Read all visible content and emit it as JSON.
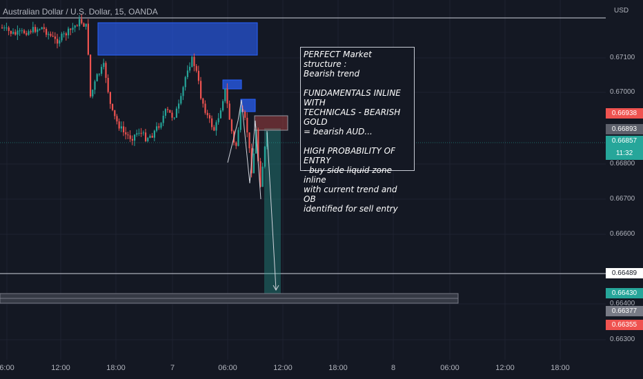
{
  "symbol": {
    "title": "Australian Dollar / U.S. Dollar, 15, OANDA"
  },
  "currency": "USD",
  "price_axis": {
    "labels": [
      "0.67100",
      "0.67000",
      "0.66800",
      "0.66700",
      "0.66600",
      "0.66400",
      "0.66300"
    ]
  },
  "tags": {
    "red_price": "0.66938",
    "gray_price": "0.66893",
    "current_price": "0.66857",
    "countdown": "11:32",
    "line_price": "0.66489",
    "green_price": "0.66430",
    "gray2_price": "0.66377",
    "red2_price": "0.66355"
  },
  "time_axis": {
    "labels": [
      "6:00",
      "12:00",
      "18:00",
      "7",
      "06:00",
      "12:00",
      "18:00",
      "8",
      "06:00",
      "12:00",
      "18:00"
    ]
  },
  "annotation": {
    "line1": "PERFECT Market structure :",
    "line2": "Bearish trend",
    "line3": "FUNDAMENTALS INLINE WITH",
    "line4": "TECHNICALS - BEARISH GOLD",
    "line5": "= bearish AUD...",
    "line6": "HIGH PROBABILITY OF ENTRY",
    "line7": "- buy side liquid zone inline",
    "line8": "with current trend and OB",
    "line9": "identified for sell entry"
  },
  "colors": {
    "background": "#141823",
    "bull": "#26a69a",
    "bear": "#ef5350",
    "order_block": "#2962ff",
    "target_zone": "#26a69a"
  }
}
